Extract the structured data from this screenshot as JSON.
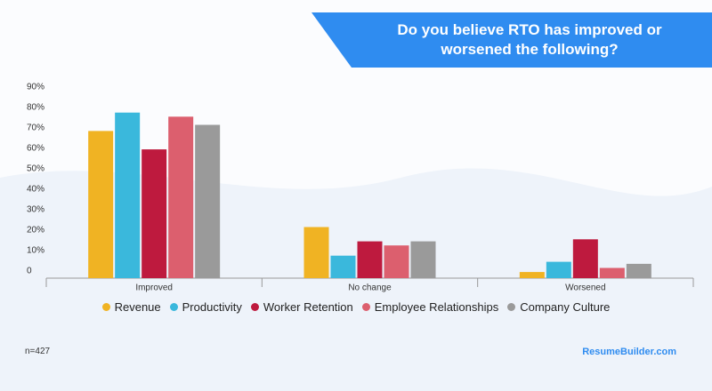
{
  "chart_data": {
    "type": "bar",
    "title": "Do you believe RTO has improved or worsened the following?",
    "categories": [
      "Improved",
      "No change",
      "Worsened"
    ],
    "series": [
      {
        "name": "Revenue",
        "color": "#f0b323",
        "values": [
          72,
          25,
          3
        ]
      },
      {
        "name": "Productivity",
        "color": "#3ab8dc",
        "values": [
          81,
          11,
          8
        ]
      },
      {
        "name": "Worker Retention",
        "color": "#be1a3e",
        "values": [
          63,
          18,
          19
        ]
      },
      {
        "name": "Employee Relationships",
        "color": "#dc5f6e",
        "values": [
          79,
          16,
          5
        ]
      },
      {
        "name": "Company Culture",
        "color": "#9a9a9a",
        "values": [
          75,
          18,
          7
        ]
      }
    ],
    "ylim": [
      0,
      90
    ],
    "yticks": [
      0,
      {
        "value": 10,
        "label": "10%"
      },
      {
        "value": 20,
        "label": "20%"
      },
      {
        "value": 30,
        "label": "30%"
      },
      {
        "value": 40,
        "label": "40%"
      },
      {
        "value": 50,
        "label": "50%"
      },
      {
        "value": 60,
        "label": "60%"
      },
      {
        "value": 70,
        "label": "70%"
      },
      {
        "value": 80,
        "label": "80%"
      },
      {
        "value": 90,
        "label": "90%"
      }
    ],
    "grid": false,
    "note": "n=427",
    "source": "ResumeBuilder.com"
  }
}
